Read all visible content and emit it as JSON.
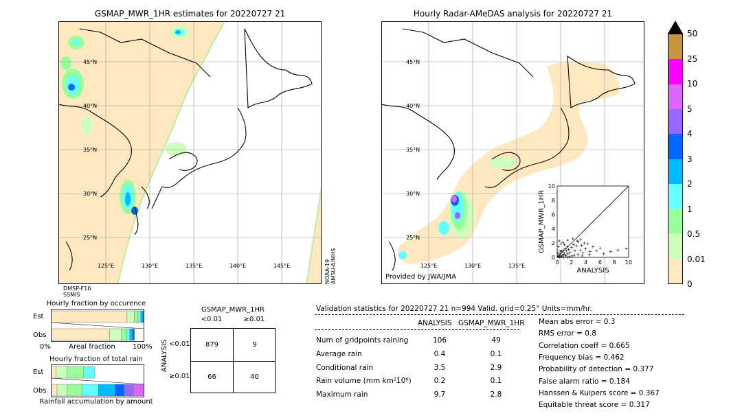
{
  "left_map": {
    "title": "GSMAP_MWR_1HR estimates for 20220727 21",
    "lat_labels": [
      "45°N",
      "40°N",
      "35°N",
      "30°N",
      "25°N"
    ],
    "lon_labels": [
      "125°E",
      "130°E",
      "135°E",
      "140°E",
      "145°E"
    ],
    "sat_left": [
      "DMSP-F16",
      "SSMIS"
    ],
    "sat_right": [
      "NOAA-19",
      "AMSU-A/MHS"
    ]
  },
  "right_map": {
    "title": "Hourly Radar-AMeDAS analysis for 20220727 21",
    "lat_labels": [
      "45°N",
      "40°N",
      "35°N",
      "30°N",
      "25°N"
    ],
    "lon_labels": [
      "125°E",
      "130°E",
      "135°E"
    ],
    "provider": "Provided by JWA/JMA"
  },
  "colorbar": {
    "labels": [
      "50",
      "25",
      "10",
      "5",
      "4",
      "3",
      "2",
      "1",
      "0.5",
      "0.01",
      "0"
    ],
    "colors": [
      "#c8963c",
      "#ff00ff",
      "#dd66ff",
      "#9966ff",
      "#0066ff",
      "#00bbff",
      "#66ffff",
      "#99ff99",
      "#ccffbb",
      "#ffe8c0"
    ]
  },
  "chart_data": [
    {
      "type": "scatter",
      "title": "",
      "xlabel": "ANALYSIS",
      "ylabel": "GSMAP_MWR_1HR",
      "xlim": [
        0,
        10
      ],
      "ylim": [
        0,
        10
      ],
      "xticks": [
        "0",
        "2",
        "4",
        "6",
        "8",
        "10"
      ],
      "yticks": [
        "0",
        "2",
        "4",
        "6",
        "8",
        "10"
      ],
      "points": [
        [
          0.1,
          0.1
        ],
        [
          0.2,
          0.3
        ],
        [
          0.3,
          0.1
        ],
        [
          0.4,
          0.5
        ],
        [
          0.5,
          0.2
        ],
        [
          0.6,
          0.8
        ],
        [
          0.7,
          0.3
        ],
        [
          0.8,
          1.0
        ],
        [
          0.9,
          0.4
        ],
        [
          1.0,
          0.6
        ],
        [
          1.1,
          1.2
        ],
        [
          1.2,
          0.3
        ],
        [
          1.3,
          0.9
        ],
        [
          1.4,
          1.5
        ],
        [
          1.5,
          0.5
        ],
        [
          1.6,
          1.1
        ],
        [
          1.8,
          0.7
        ],
        [
          2.0,
          1.4
        ],
        [
          2.1,
          0.2
        ],
        [
          2.3,
          1.8
        ],
        [
          2.5,
          0.9
        ],
        [
          2.7,
          1.6
        ],
        [
          2.9,
          0.4
        ],
        [
          3.0,
          2.2
        ],
        [
          3.2,
          1.0
        ],
        [
          3.4,
          1.7
        ],
        [
          3.6,
          0.6
        ],
        [
          3.8,
          2.0
        ],
        [
          4.0,
          1.2
        ],
        [
          4.3,
          1.9
        ],
        [
          4.6,
          0.8
        ],
        [
          5.0,
          1.5
        ],
        [
          5.5,
          0.9
        ],
        [
          6.0,
          1.3
        ],
        [
          0.2,
          1.5
        ],
        [
          0.5,
          1.9
        ],
        [
          0.3,
          2.3
        ],
        [
          0.8,
          2.1
        ],
        [
          1.0,
          1.8
        ],
        [
          1.5,
          2.4
        ],
        [
          2.2,
          2.6
        ],
        [
          2.8,
          2.3
        ],
        [
          3.3,
          2.5
        ],
        [
          0.1,
          0.6
        ],
        [
          0.4,
          0.9
        ],
        [
          6.5,
          0.5
        ],
        [
          8.5,
          1.0
        ],
        [
          9.7,
          1.2
        ],
        [
          7.5,
          0.8
        ],
        [
          0.6,
          0.1
        ],
        [
          1.2,
          0.2
        ],
        [
          1.7,
          0.1
        ],
        [
          2.4,
          0.3
        ],
        [
          0.9,
          0.0
        ],
        [
          1.4,
          0.0
        ],
        [
          0.3,
          0.0
        ],
        [
          3.5,
          0.2
        ],
        [
          4.5,
          0.4
        ]
      ],
      "diagonal": true
    },
    {
      "type": "bar",
      "title": "Hourly fraction by occurence",
      "xlabel": "Areal fraction",
      "xticks": [
        "0%",
        "100%"
      ],
      "categories": [
        "Est",
        "Obs"
      ],
      "stacked": true,
      "series": [
        {
          "values": [
            0.82,
            0.63
          ],
          "color": "#ffe8c0"
        },
        {
          "values": [
            0.08,
            0.13
          ],
          "color": "#ccffbb"
        },
        {
          "values": [
            0.04,
            0.05
          ],
          "color": "#99ff99"
        },
        {
          "values": [
            0.03,
            0.04
          ],
          "color": "#66ffff"
        },
        {
          "values": [
            0.02,
            0.03
          ],
          "color": "#00bbff"
        },
        {
          "values": [
            0.01,
            0.02
          ],
          "color": "#0066ff"
        }
      ]
    },
    {
      "type": "bar",
      "title": "Hourly fraction of total rain",
      "xlabel": "Rainfall accumulation by amount",
      "categories": [
        "Est",
        "Obs"
      ],
      "stacked": true,
      "series": [
        {
          "values": [
            0.05,
            0.06
          ],
          "color": "#ffe8c0"
        },
        {
          "values": [
            0.12,
            0.11
          ],
          "color": "#ccffbb"
        },
        {
          "values": [
            0.18,
            0.16
          ],
          "color": "#99ff99"
        },
        {
          "values": [
            0.12,
            0.18
          ],
          "color": "#66ffff"
        },
        {
          "values": [
            0.0,
            0.18
          ],
          "color": "#00bbff"
        },
        {
          "values": [
            0.0,
            0.1
          ],
          "color": "#0066ff"
        },
        {
          "values": [
            0.0,
            0.1
          ],
          "color": "#9966ff"
        },
        {
          "values": [
            0.0,
            0.11
          ],
          "color": "#dd66ff"
        }
      ]
    },
    {
      "type": "table",
      "title": "GSMAP_MWR_1HR",
      "col_labels": [
        "<0.01",
        "≥0.01"
      ],
      "row_axis_label": "ANALYSIS",
      "row_labels": [
        "<0.01",
        "≥0.01"
      ],
      "cells": [
        [
          "879",
          "9"
        ],
        [
          "66",
          "40"
        ]
      ]
    }
  ],
  "validation": {
    "header": "Validation statistics for 20220727 21  n=994 Valid. grid=0.25° Units=mm/hr.",
    "col_analysis": "ANALYSIS",
    "col_gsmap": "GSMAP_MWR_1HR",
    "rows": [
      {
        "label": "Num of gridpoints raining",
        "analysis": "106",
        "gsmap": "49"
      },
      {
        "label": "Average rain",
        "analysis": "0.4",
        "gsmap": "0.1"
      },
      {
        "label": "Conditional rain",
        "analysis": "3.5",
        "gsmap": "2.9"
      },
      {
        "label": "Rain volume (mm km²10⁶)",
        "analysis": "0.2",
        "gsmap": "0.1"
      },
      {
        "label": "Maximum rain",
        "analysis": "9.7",
        "gsmap": "2.8"
      }
    ],
    "scores": [
      "Mean abs error =    0.3",
      "RMS error =    0.8",
      "Correlation coeff =  0.665",
      "Frequency bias =  0.462",
      "Probability of detection =  0.377",
      "False alarm ratio =  0.184",
      "Hanssen & Kuipers score =  0.367",
      "Equitable threat score =  0.317"
    ]
  }
}
